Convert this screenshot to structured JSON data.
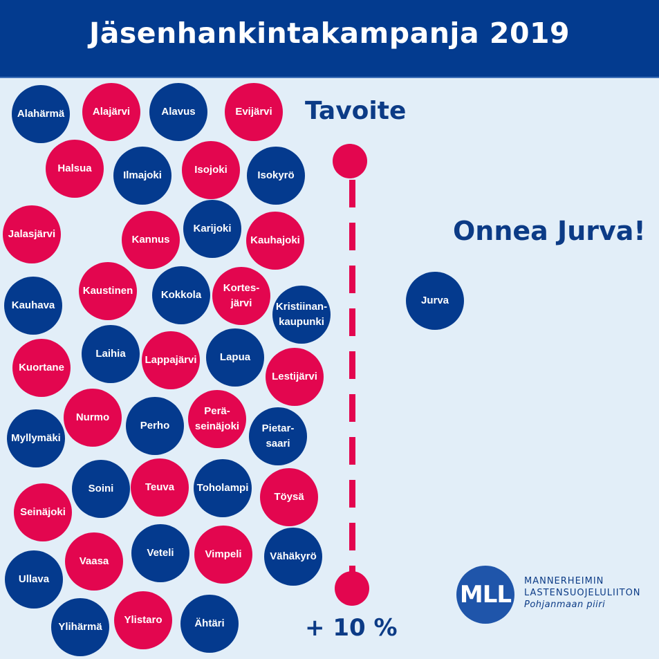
{
  "header": {
    "title": "Jäsenhankintakampanja 2019"
  },
  "goal": {
    "label": "Tavoite",
    "increase": "+ 10 %"
  },
  "message": "Onnea Jurva!",
  "colors": {
    "blue": "#043a8e",
    "red": "#e3064f",
    "background": "#e2eef8"
  },
  "municipalities": [
    {
      "name": "Alahärmä",
      "color": "blue"
    },
    {
      "name": "Alajärvi",
      "color": "red"
    },
    {
      "name": "Alavus",
      "color": "blue"
    },
    {
      "name": "Evijärvi",
      "color": "red"
    },
    {
      "name": "Halsua",
      "color": "red"
    },
    {
      "name": "Ilmajoki",
      "color": "blue"
    },
    {
      "name": "Isojoki",
      "color": "red"
    },
    {
      "name": "Isokyrö",
      "color": "blue"
    },
    {
      "name": "Jalasjärvi",
      "color": "red"
    },
    {
      "name": "Kannus",
      "color": "red"
    },
    {
      "name": "Karijoki",
      "color": "blue"
    },
    {
      "name": "Kauhajoki",
      "color": "red"
    },
    {
      "name": "Kauhava",
      "color": "blue"
    },
    {
      "name": "Kaustinen",
      "color": "red"
    },
    {
      "name": "Kokkola",
      "color": "blue"
    },
    {
      "name": "Kortes-\njärvi",
      "color": "red"
    },
    {
      "name": "Kristiinan-\nkaupunki",
      "color": "blue"
    },
    {
      "name": "Kuortane",
      "color": "red"
    },
    {
      "name": "Laihia",
      "color": "blue"
    },
    {
      "name": "Lappajärvi",
      "color": "red"
    },
    {
      "name": "Lapua",
      "color": "blue"
    },
    {
      "name": "Lestijärvi",
      "color": "red"
    },
    {
      "name": "Myllymäki",
      "color": "blue"
    },
    {
      "name": "Nurmo",
      "color": "red"
    },
    {
      "name": "Perho",
      "color": "blue"
    },
    {
      "name": "Perä-\nseinäjoki",
      "color": "red"
    },
    {
      "name": "Pietar-\nsaari",
      "color": "blue"
    },
    {
      "name": "Seinäjoki",
      "color": "red"
    },
    {
      "name": "Soini",
      "color": "blue"
    },
    {
      "name": "Teuva",
      "color": "red"
    },
    {
      "name": "Toholampi",
      "color": "blue"
    },
    {
      "name": "Töysä",
      "color": "red"
    },
    {
      "name": "Ullava",
      "color": "blue"
    },
    {
      "name": "Vaasa",
      "color": "red"
    },
    {
      "name": "Veteli",
      "color": "blue"
    },
    {
      "name": "Vimpeli",
      "color": "red"
    },
    {
      "name": "Vähäkyrö",
      "color": "blue"
    },
    {
      "name": "Ylihärmä",
      "color": "blue"
    },
    {
      "name": "Ylistaro",
      "color": "red"
    },
    {
      "name": "Ähtäri",
      "color": "blue"
    },
    {
      "name": "Jurva",
      "color": "blue"
    }
  ],
  "logo": {
    "badge": "MLL",
    "line1": "MANNERHEIMIN",
    "line2": "LASTENSUOJELULIITON",
    "line3": "Pohjanmaan piiri"
  }
}
